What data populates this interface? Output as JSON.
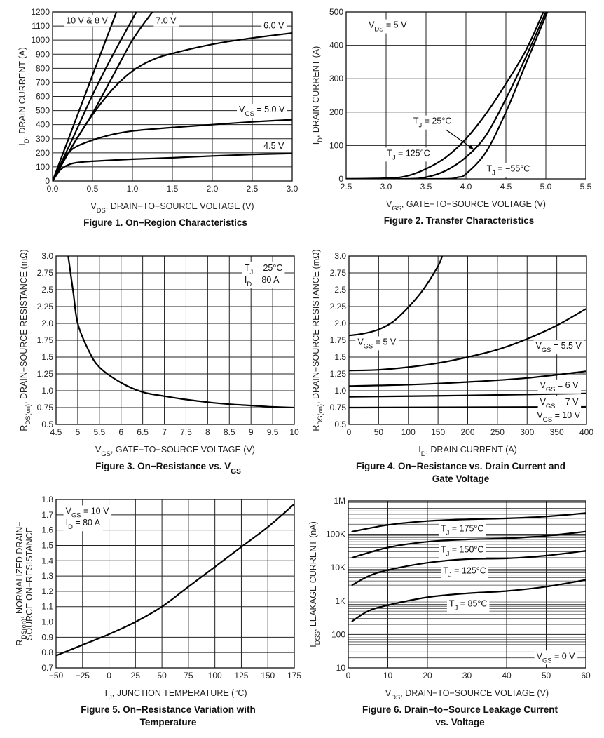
{
  "chart_data": [
    {
      "type": "line",
      "title": "Figure 1. On−Region Characteristics",
      "xlabel": "V_{DS}, DRAIN−TO−SOURCE VOLTAGE (V)",
      "ylabel": [
        "I_{D}, DRAIN CURRENT (A)"
      ],
      "xlim": [
        0,
        3
      ],
      "ylim": [
        0,
        1200
      ],
      "yscale": "linear",
      "grid": true,
      "xticks": [
        0,
        0.5,
        1,
        1.5,
        2,
        2.5,
        3
      ],
      "xtick_labels": [
        "0.0",
        "0.5",
        "1.0",
        "1.5",
        "2.0",
        "2.5",
        "3.0"
      ],
      "yticks": [
        0,
        100,
        200,
        300,
        400,
        500,
        600,
        700,
        800,
        900,
        1000,
        1100,
        1200
      ],
      "ytick_labels": [
        "0",
        "100",
        "200",
        "300",
        "400",
        "500",
        "600",
        "700",
        "800",
        "900",
        "1000",
        "1100",
        "1200"
      ],
      "annotations": [
        "10 V & 8 V",
        "7.0 V",
        "6.0 V",
        "V_{GS} = 5.0 V",
        "4.5 V"
      ],
      "series": [
        {
          "name": "10 V",
          "points": [
            [
              0,
              0
            ],
            [
              0.2,
              300
            ],
            [
              0.4,
              600
            ],
            [
              0.6,
              900
            ],
            [
              0.8,
              1200
            ]
          ]
        },
        {
          "name": "8 V",
          "points": [
            [
              0,
              0
            ],
            [
              0.25,
              300
            ],
            [
              0.5,
              610
            ],
            [
              0.75,
              890
            ],
            [
              1.05,
              1200
            ]
          ]
        },
        {
          "name": "7.0 V",
          "points": [
            [
              0,
              0
            ],
            [
              0.25,
              250
            ],
            [
              0.5,
              480
            ],
            [
              0.75,
              740
            ],
            [
              1.0,
              1000
            ],
            [
              1.25,
              1200
            ]
          ]
        },
        {
          "name": "6.0 V",
          "points": [
            [
              0,
              0
            ],
            [
              0.25,
              250
            ],
            [
              0.5,
              470
            ],
            [
              0.75,
              650
            ],
            [
              1.0,
              780
            ],
            [
              1.25,
              860
            ],
            [
              1.5,
              905
            ],
            [
              2.0,
              970
            ],
            [
              2.5,
              1015
            ],
            [
              3.0,
              1050
            ]
          ]
        },
        {
          "name": "V_GS = 5.0 V",
          "points": [
            [
              0,
              0
            ],
            [
              0.1,
              120
            ],
            [
              0.2,
              200
            ],
            [
              0.3,
              245
            ],
            [
              0.5,
              290
            ],
            [
              0.75,
              330
            ],
            [
              1.0,
              355
            ],
            [
              1.5,
              380
            ],
            [
              2.0,
              400
            ],
            [
              2.5,
              420
            ],
            [
              3.0,
              435
            ]
          ]
        },
        {
          "name": "4.5 V",
          "points": [
            [
              0,
              0
            ],
            [
              0.1,
              80
            ],
            [
              0.2,
              115
            ],
            [
              0.3,
              130
            ],
            [
              0.5,
              140
            ],
            [
              1.0,
              155
            ],
            [
              1.5,
              165
            ],
            [
              2.0,
              178
            ],
            [
              2.5,
              188
            ],
            [
              3.0,
              195
            ]
          ]
        }
      ]
    },
    {
      "type": "line",
      "title": "Figure 2. Transfer Characteristics",
      "xlabel": "V_{GS}, GATE−TO−SOURCE VOLTAGE (V)",
      "ylabel": [
        "I_{D}, DRAIN CURRENT (A)"
      ],
      "xlim": [
        2.5,
        5.5
      ],
      "ylim": [
        0,
        500
      ],
      "yscale": "linear",
      "grid": true,
      "xticks": [
        2.5,
        3,
        3.5,
        4,
        4.5,
        5,
        5.5
      ],
      "xtick_labels": [
        "2.5",
        "3.0",
        "3.5",
        "4.0",
        "4.5",
        "5.0",
        "5.5"
      ],
      "yticks": [
        0,
        100,
        200,
        300,
        400,
        500
      ],
      "ytick_labels": [
        "0",
        "100",
        "200",
        "300",
        "400",
        "500"
      ],
      "annotations": [
        "V_{DS} = 5 V",
        "T_{J} = 25°C",
        "T_{J} = 125°C",
        "T_{J} = −55°C"
      ],
      "series": [
        {
          "name": "T_J = 125°C",
          "points": [
            [
              2.5,
              0
            ],
            [
              3.0,
              2
            ],
            [
              3.25,
              8
            ],
            [
              3.5,
              30
            ],
            [
              3.75,
              65
            ],
            [
              4.0,
              120
            ],
            [
              4.25,
              195
            ],
            [
              4.5,
              285
            ],
            [
              4.75,
              385
            ],
            [
              4.97,
              500
            ]
          ]
        },
        {
          "name": "T_J = 25°C",
          "points": [
            [
              2.5,
              0
            ],
            [
              3.25,
              0
            ],
            [
              3.5,
              5
            ],
            [
              3.75,
              25
            ],
            [
              4.0,
              65
            ],
            [
              4.25,
              130
            ],
            [
              4.5,
              240
            ],
            [
              4.75,
              365
            ],
            [
              5.0,
              500
            ]
          ]
        },
        {
          "name": "T_J = −55°C",
          "points": [
            [
              2.5,
              0
            ],
            [
              3.7,
              0
            ],
            [
              3.9,
              5
            ],
            [
              4.0,
              15
            ],
            [
              4.25,
              80
            ],
            [
              4.5,
              200
            ],
            [
              4.75,
              345
            ],
            [
              5.02,
              500
            ]
          ]
        }
      ]
    },
    {
      "type": "line",
      "title": "Figure 3. On−Resistance vs. V_{GS}",
      "xlabel": "V_{GS}, GATE−TO−SOURCE VOLTAGE (V)",
      "ylabel": [
        "R_{DS(on)}, DRAIN−SOURCE RESISTANCE (mΩ)"
      ],
      "xlim": [
        4.5,
        10
      ],
      "ylim": [
        0.5,
        3.0
      ],
      "yscale": "linear",
      "grid": true,
      "xticks": [
        4.5,
        5,
        5.5,
        6,
        6.5,
        7,
        7.5,
        8,
        8.5,
        9,
        9.5,
        10
      ],
      "xtick_labels": [
        "4.5",
        "5",
        "5.5",
        "6",
        "6.5",
        "7",
        "7.5",
        "8",
        "8.5",
        "9",
        "9.5",
        "10"
      ],
      "yticks": [
        0.5,
        0.75,
        1.0,
        1.25,
        1.5,
        1.75,
        2.0,
        2.25,
        2.5,
        2.75,
        3.0
      ],
      "ytick_labels": [
        "0.5",
        "0.75",
        "1.0",
        "1.25",
        "1.5",
        "1.75",
        "2.0",
        "2.25",
        "2.5",
        "2.75",
        "3.0"
      ],
      "annotations": [
        "T_{J} = 25°C",
        "I_{D} = 80 A"
      ],
      "series": [
        {
          "points": [
            [
              4.78,
              3.0
            ],
            [
              4.9,
              2.45
            ],
            [
              5.0,
              2.0
            ],
            [
              5.25,
              1.6
            ],
            [
              5.5,
              1.35
            ],
            [
              6.0,
              1.12
            ],
            [
              6.5,
              0.98
            ],
            [
              7,
              0.92
            ],
            [
              7.5,
              0.87
            ],
            [
              8,
              0.83
            ],
            [
              8.5,
              0.8
            ],
            [
              9,
              0.78
            ],
            [
              9.5,
              0.76
            ],
            [
              10,
              0.75
            ]
          ]
        }
      ]
    },
    {
      "type": "line",
      "title": [
        "Figure 4. On−Resistance vs. Drain Current and",
        "Gate Voltage"
      ],
      "xlabel": "I_{D}, DRAIN CURRENT (A)",
      "ylabel": [
        "R_{DS(on)}, DRAIN−SOURCE RESISTANCE (mΩ)"
      ],
      "xlim": [
        0,
        400
      ],
      "ylim": [
        0.5,
        3.0
      ],
      "yscale": "linear",
      "grid": true,
      "xticks": [
        0,
        50,
        100,
        150,
        200,
        250,
        300,
        350,
        400
      ],
      "xtick_labels": [
        "0",
        "50",
        "100",
        "150",
        "200",
        "250",
        "300",
        "350",
        "400"
      ],
      "yticks": [
        0.5,
        0.75,
        1.0,
        1.25,
        1.5,
        1.75,
        2.0,
        2.25,
        2.5,
        2.75,
        3.0
      ],
      "ytick_labels": [
        "0.5",
        "0.75",
        "1.0",
        "1.25",
        "1.5",
        "1.75",
        "2.0",
        "2.25",
        "2.5",
        "2.75",
        "3.0"
      ],
      "annotations": [
        "V_{GS} = 5 V",
        "V_{GS} = 5.5 V",
        "V_{GS} = 6 V",
        "V_{GS} = 7 V",
        "V_{GS} = 10 V"
      ],
      "series": [
        {
          "name": "V_GS = 5 V",
          "points": [
            [
              0,
              1.82
            ],
            [
              25,
              1.85
            ],
            [
              50,
              1.91
            ],
            [
              75,
              2.03
            ],
            [
              100,
              2.24
            ],
            [
              125,
              2.5
            ],
            [
              150,
              2.85
            ],
            [
              157,
              3.0
            ]
          ]
        },
        {
          "name": "V_GS = 5.5 V",
          "points": [
            [
              0,
              1.3
            ],
            [
              50,
              1.31
            ],
            [
              100,
              1.35
            ],
            [
              150,
              1.41
            ],
            [
              200,
              1.5
            ],
            [
              250,
              1.61
            ],
            [
              300,
              1.77
            ],
            [
              350,
              1.97
            ],
            [
              400,
              2.22
            ]
          ]
        },
        {
          "name": "V_GS = 6 V",
          "points": [
            [
              0,
              1.07
            ],
            [
              100,
              1.09
            ],
            [
              200,
              1.13
            ],
            [
              300,
              1.19
            ],
            [
              400,
              1.29
            ]
          ]
        },
        {
          "name": "V_GS = 7 V",
          "points": [
            [
              0,
              0.91
            ],
            [
              200,
              0.93
            ],
            [
              400,
              0.96
            ]
          ]
        },
        {
          "name": "V_GS = 10 V",
          "points": [
            [
              0,
              0.75
            ],
            [
              400,
              0.76
            ]
          ]
        }
      ]
    },
    {
      "type": "line",
      "title": [
        "Figure 5. On−Resistance Variation with",
        "Temperature"
      ],
      "xlabel": "T_{J}, JUNCTION TEMPERATURE (°C)",
      "ylabel": [
        "R_{DS(on)}, NORMALIZED DRAIN−",
        "SOURCE ON−RESISTANCE"
      ],
      "xlim": [
        -50,
        175
      ],
      "ylim": [
        0.7,
        1.8
      ],
      "yscale": "linear",
      "grid": true,
      "xticks": [
        -50,
        -25,
        0,
        25,
        50,
        75,
        100,
        125,
        150,
        175
      ],
      "xtick_labels": [
        "−50",
        "−25",
        "0",
        "25",
        "50",
        "75",
        "100",
        "125",
        "150",
        "175"
      ],
      "yticks": [
        0.7,
        0.8,
        0.9,
        1.0,
        1.1,
        1.2,
        1.3,
        1.4,
        1.5,
        1.6,
        1.7,
        1.8
      ],
      "ytick_labels": [
        "0.7",
        "0.8",
        "0.9",
        "1.0",
        "1.1",
        "1.2",
        "1.3",
        "1.4",
        "1.5",
        "1.6",
        "1.7",
        "1.8"
      ],
      "annotations": [
        "V_{GS} = 10 V",
        "I_{D} = 80 A"
      ],
      "series": [
        {
          "points": [
            [
              -50,
              0.78
            ],
            [
              -25,
              0.85
            ],
            [
              0,
              0.92
            ],
            [
              25,
              1.0
            ],
            [
              50,
              1.1
            ],
            [
              75,
              1.23
            ],
            [
              100,
              1.36
            ],
            [
              125,
              1.49
            ],
            [
              150,
              1.62
            ],
            [
              175,
              1.77
            ]
          ]
        }
      ]
    },
    {
      "type": "line",
      "title": [
        "Figure 6. Drain−to−Source Leakage Current",
        "vs. Voltage"
      ],
      "xlabel": "V_{DS}, DRAIN−TO−SOURCE VOLTAGE (V)",
      "ylabel": [
        "I_{DSS}, LEAKAGE CURRENT (nA)"
      ],
      "xlim": [
        0,
        60
      ],
      "ylim": [
        10,
        1000000
      ],
      "yscale": "log",
      "grid": true,
      "xticks": [
        0,
        10,
        20,
        30,
        40,
        50,
        60
      ],
      "xtick_labels": [
        "0",
        "10",
        "20",
        "30",
        "40",
        "50",
        "60"
      ],
      "yticks": [
        10,
        100,
        1000,
        10000,
        100000,
        1000000
      ],
      "ytick_labels": [
        "10",
        "100",
        "1K",
        "10K",
        "100K",
        "1M"
      ],
      "annotations": [
        "T_{J} = 175°C",
        "T_{J} = 150°C",
        "T_{J} = 125°C",
        "T_{J} = 85°C",
        "V_{GS} = 0 V"
      ],
      "series": [
        {
          "name": "T_J = 175°C",
          "points": [
            [
              1,
              120000
            ],
            [
              10,
              190000
            ],
            [
              20,
              250000
            ],
            [
              30,
              280000
            ],
            [
              40,
              300000
            ],
            [
              50,
              340000
            ],
            [
              60,
              430000
            ]
          ]
        },
        {
          "name": "T_J = 150°C",
          "points": [
            [
              1,
              20000
            ],
            [
              10,
              40000
            ],
            [
              20,
              60000
            ],
            [
              30,
              70000
            ],
            [
              40,
              75000
            ],
            [
              50,
              90000
            ],
            [
              60,
              120000
            ]
          ]
        },
        {
          "name": "T_J = 125°C",
          "points": [
            [
              1,
              3000
            ],
            [
              5,
              5500
            ],
            [
              10,
              8500
            ],
            [
              20,
              14000
            ],
            [
              30,
              18000
            ],
            [
              40,
              19000
            ],
            [
              50,
              23000
            ],
            [
              60,
              32000
            ]
          ]
        },
        {
          "name": "T_J = 85°C",
          "points": [
            [
              1,
              250
            ],
            [
              5,
              500
            ],
            [
              10,
              750
            ],
            [
              20,
              1300
            ],
            [
              30,
              1700
            ],
            [
              40,
              2000
            ],
            [
              50,
              2700
            ],
            [
              60,
              4300
            ]
          ]
        }
      ]
    }
  ]
}
